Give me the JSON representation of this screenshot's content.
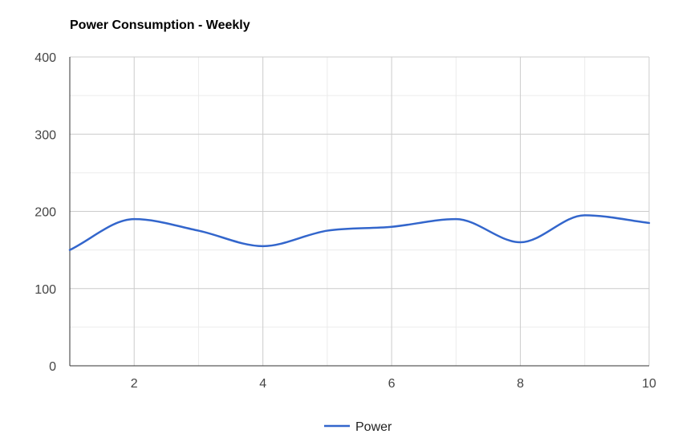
{
  "chart_data": {
    "type": "line",
    "title": "Power Consumption - Weekly",
    "xlabel": "",
    "ylabel": "",
    "x": [
      1,
      2,
      3,
      4,
      5,
      6,
      7,
      8,
      9,
      10
    ],
    "series": [
      {
        "name": "Power",
        "values": [
          150,
          190,
          175,
          155,
          175,
          180,
          190,
          160,
          195,
          185
        ],
        "color": "#3366cc"
      }
    ],
    "xlim": [
      1,
      10
    ],
    "ylim": [
      0,
      400
    ],
    "xticks": [
      "2",
      "4",
      "6",
      "8",
      "10"
    ],
    "yticks": [
      "0",
      "100",
      "200",
      "300",
      "400"
    ],
    "grid": true,
    "smooth": true,
    "legend_position": "bottom",
    "colors": {
      "major_grid": "#cccccc",
      "minor_grid": "#ebebeb",
      "axis": "#333333"
    }
  }
}
